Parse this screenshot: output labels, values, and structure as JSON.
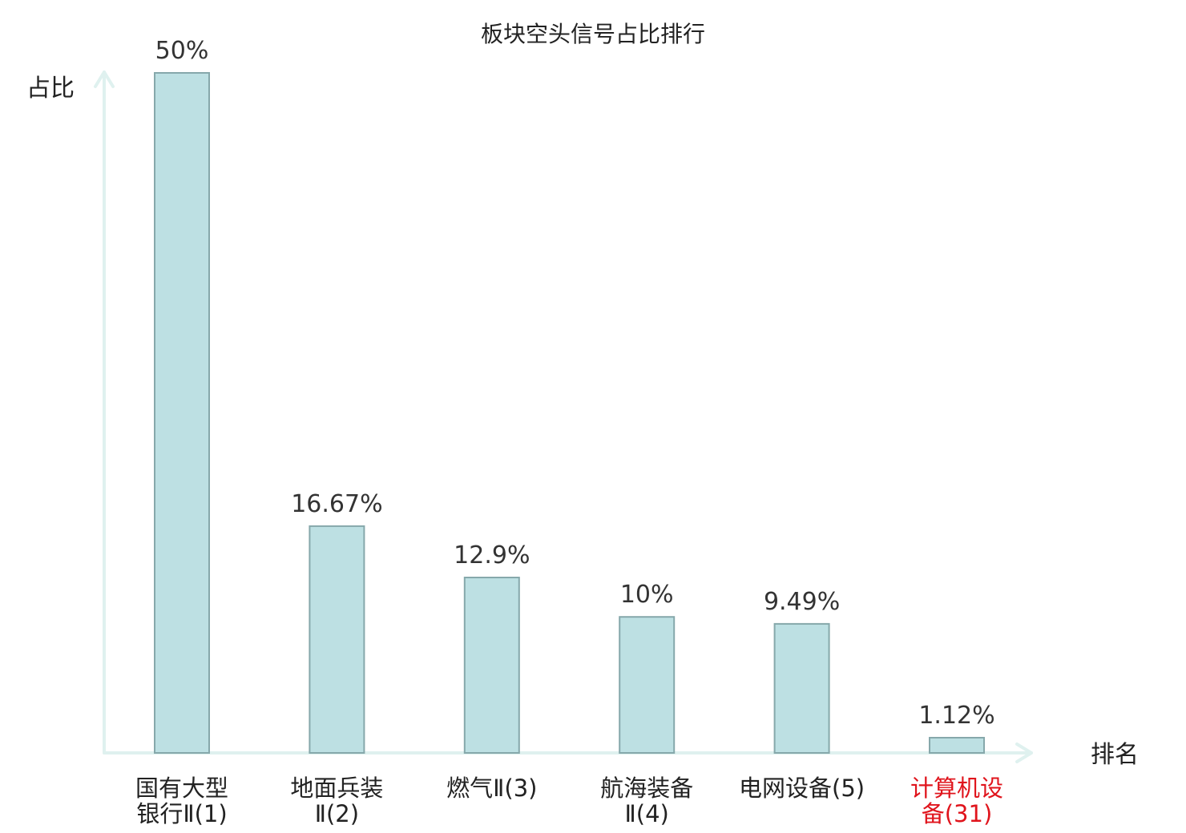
{
  "chart_data": {
    "type": "bar",
    "title": "板块空头信号占比排行",
    "ylabel": "占比",
    "xlabel": "排名",
    "ylim": [
      0,
      50
    ],
    "grid": false,
    "categories": [
      [
        "国有大型",
        "银行Ⅱ(1)"
      ],
      [
        "地面兵装",
        "Ⅱ(2)"
      ],
      [
        "燃气Ⅱ(3)"
      ],
      [
        "航海装备",
        "Ⅱ(4)"
      ],
      [
        "电网设备(5)"
      ],
      [
        "计算机设",
        "备(31)"
      ]
    ],
    "values": [
      50,
      16.67,
      12.9,
      10,
      9.49,
      1.12
    ],
    "value_labels": [
      "50%",
      "16.67%",
      "12.9%",
      "10%",
      "9.49%",
      "1.12%"
    ],
    "highlight_index": 5
  },
  "colors": {
    "bar_fill": "#bde0e3",
    "bar_stroke": "#86a8ab",
    "axis": "#dff1ef",
    "label_default": "#222222",
    "label_highlight": "#e0141c"
  }
}
